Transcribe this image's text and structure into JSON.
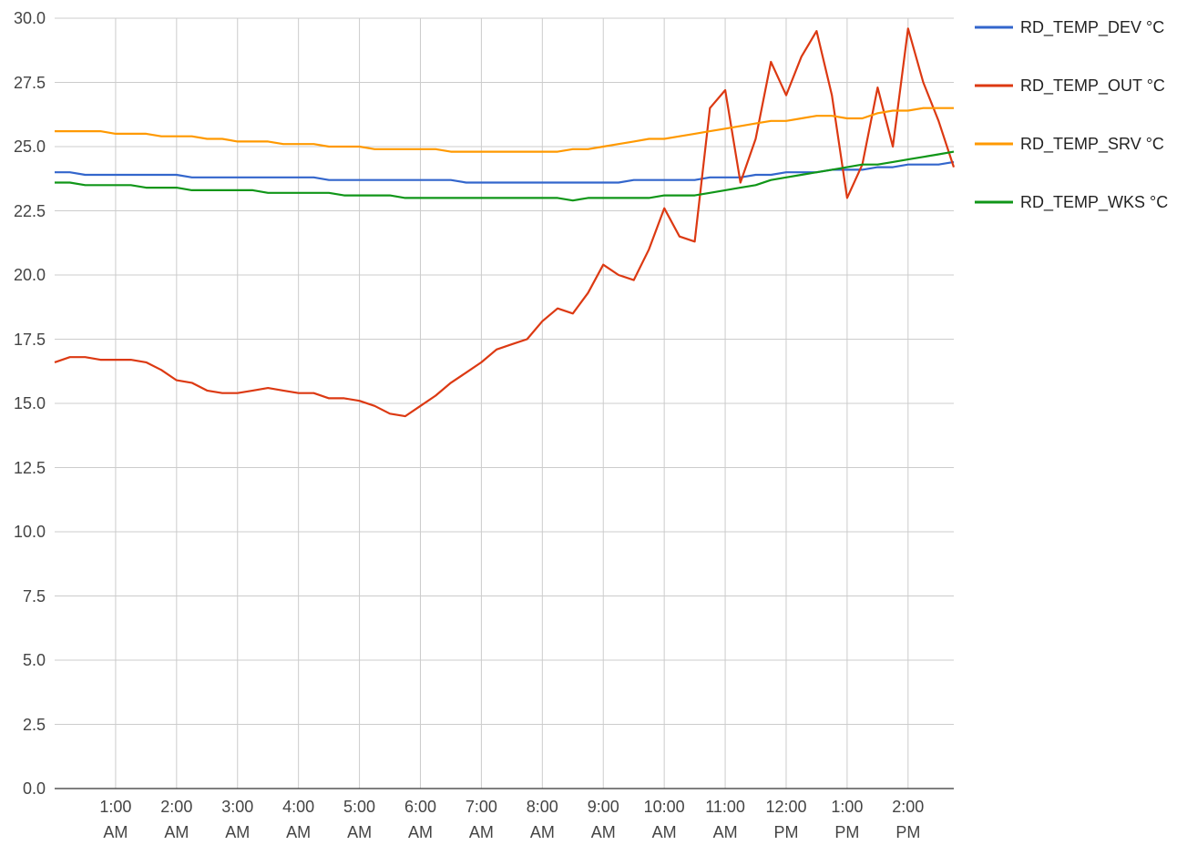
{
  "chart_data": {
    "type": "line",
    "x": [
      0,
      0.25,
      0.5,
      0.75,
      1,
      1.25,
      1.5,
      1.75,
      2,
      2.25,
      2.5,
      2.75,
      3,
      3.25,
      3.5,
      3.75,
      4,
      4.25,
      4.5,
      4.75,
      5,
      5.25,
      5.5,
      5.75,
      6,
      6.25,
      6.5,
      6.75,
      7,
      7.25,
      7.5,
      7.75,
      8,
      8.25,
      8.5,
      8.75,
      9,
      9.25,
      9.5,
      9.75,
      10,
      10.25,
      10.5,
      10.75,
      11,
      11.25,
      11.5,
      11.75,
      12,
      12.25,
      12.5,
      12.75,
      13,
      13.25,
      13.5,
      13.75,
      14,
      14.25,
      14.5,
      14.75
    ],
    "series": [
      {
        "name": "RD_TEMP_DEV °C",
        "color": "#3366cc",
        "values": [
          24.0,
          24.0,
          23.9,
          23.9,
          23.9,
          23.9,
          23.9,
          23.9,
          23.9,
          23.8,
          23.8,
          23.8,
          23.8,
          23.8,
          23.8,
          23.8,
          23.8,
          23.8,
          23.7,
          23.7,
          23.7,
          23.7,
          23.7,
          23.7,
          23.7,
          23.7,
          23.7,
          23.6,
          23.6,
          23.6,
          23.6,
          23.6,
          23.6,
          23.6,
          23.6,
          23.6,
          23.6,
          23.6,
          23.7,
          23.7,
          23.7,
          23.7,
          23.7,
          23.8,
          23.8,
          23.8,
          23.9,
          23.9,
          24.0,
          24.0,
          24.0,
          24.1,
          24.1,
          24.1,
          24.2,
          24.2,
          24.3,
          24.3,
          24.3,
          24.4
        ]
      },
      {
        "name": "RD_TEMP_OUT °C",
        "color": "#dc3912",
        "values": [
          16.6,
          16.8,
          16.8,
          16.7,
          16.7,
          16.7,
          16.6,
          16.3,
          15.9,
          15.8,
          15.5,
          15.4,
          15.4,
          15.5,
          15.6,
          15.5,
          15.4,
          15.4,
          15.2,
          15.2,
          15.1,
          14.9,
          14.6,
          14.5,
          14.9,
          15.3,
          15.8,
          16.2,
          16.6,
          17.1,
          17.3,
          17.5,
          18.2,
          18.7,
          18.5,
          19.3,
          20.4,
          20.0,
          19.8,
          21.0,
          22.6,
          21.5,
          21.3,
          26.5,
          27.2,
          23.6,
          25.3,
          28.3,
          27.0,
          28.5,
          29.5,
          27.0,
          23.0,
          24.3,
          27.3,
          25.0,
          29.6,
          27.5,
          26.0,
          24.2
        ]
      },
      {
        "name": "RD_TEMP_SRV °C",
        "color": "#ff9900",
        "values": [
          25.6,
          25.6,
          25.6,
          25.6,
          25.5,
          25.5,
          25.5,
          25.4,
          25.4,
          25.4,
          25.3,
          25.3,
          25.2,
          25.2,
          25.2,
          25.1,
          25.1,
          25.1,
          25.0,
          25.0,
          25.0,
          24.9,
          24.9,
          24.9,
          24.9,
          24.9,
          24.8,
          24.8,
          24.8,
          24.8,
          24.8,
          24.8,
          24.8,
          24.8,
          24.9,
          24.9,
          25.0,
          25.1,
          25.2,
          25.3,
          25.3,
          25.4,
          25.5,
          25.6,
          25.7,
          25.8,
          25.9,
          26.0,
          26.0,
          26.1,
          26.2,
          26.2,
          26.1,
          26.1,
          26.3,
          26.4,
          26.4,
          26.5,
          26.5,
          26.5
        ]
      },
      {
        "name": "RD_TEMP_WKS °C",
        "color": "#109618",
        "values": [
          23.6,
          23.6,
          23.5,
          23.5,
          23.5,
          23.5,
          23.4,
          23.4,
          23.4,
          23.3,
          23.3,
          23.3,
          23.3,
          23.3,
          23.2,
          23.2,
          23.2,
          23.2,
          23.2,
          23.1,
          23.1,
          23.1,
          23.1,
          23.0,
          23.0,
          23.0,
          23.0,
          23.0,
          23.0,
          23.0,
          23.0,
          23.0,
          23.0,
          23.0,
          22.9,
          23.0,
          23.0,
          23.0,
          23.0,
          23.0,
          23.1,
          23.1,
          23.1,
          23.2,
          23.3,
          23.4,
          23.5,
          23.7,
          23.8,
          23.9,
          24.0,
          24.1,
          24.2,
          24.3,
          24.3,
          24.4,
          24.5,
          24.6,
          24.7,
          24.8
        ]
      }
    ],
    "xlim": [
      0,
      14.75
    ],
    "xticks": [
      {
        "value": 1,
        "label": "1:00 AM"
      },
      {
        "value": 2,
        "label": "2:00 AM"
      },
      {
        "value": 3,
        "label": "3:00 AM"
      },
      {
        "value": 4,
        "label": "4:00 AM"
      },
      {
        "value": 5,
        "label": "5:00 AM"
      },
      {
        "value": 6,
        "label": "6:00 AM"
      },
      {
        "value": 7,
        "label": "7:00 AM"
      },
      {
        "value": 8,
        "label": "8:00 AM"
      },
      {
        "value": 9,
        "label": "9:00 AM"
      },
      {
        "value": 10,
        "label": "10:00 AM"
      },
      {
        "value": 11,
        "label": "11:00 AM"
      },
      {
        "value": 12,
        "label": "12:00 PM"
      },
      {
        "value": 13,
        "label": "1:00 PM"
      },
      {
        "value": 14,
        "label": "2:00 PM"
      }
    ],
    "ylim": [
      0,
      30
    ],
    "yticks": [
      {
        "value": 0,
        "label": "0.0"
      },
      2.5,
      {
        "value": 5,
        "label": "5.0"
      },
      7.5,
      {
        "value": 10,
        "label": "10.0"
      },
      12.5,
      {
        "value": 15,
        "label": "15.0"
      },
      17.5,
      {
        "value": 20,
        "label": "20.0"
      },
      22.5,
      {
        "value": 25,
        "label": "25.0"
      },
      27.5,
      {
        "value": 30,
        "label": "30.0"
      }
    ],
    "grid": true,
    "legend": "right"
  }
}
